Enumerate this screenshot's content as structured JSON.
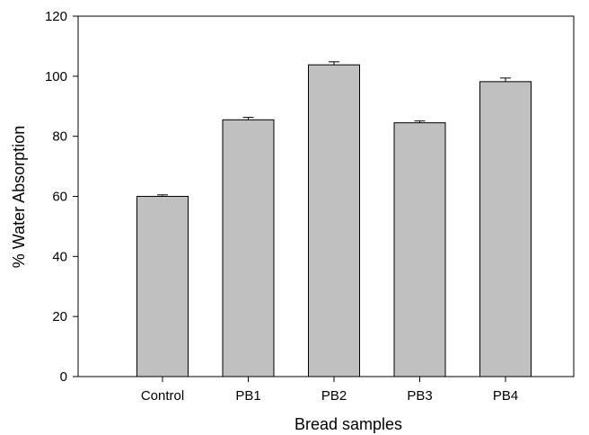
{
  "chart_data": {
    "type": "bar",
    "title": "",
    "xlabel": "Bread samples",
    "ylabel": "% Water Absorption",
    "categories": [
      "Control",
      "PB1",
      "PB2",
      "PB3",
      "PB4"
    ],
    "values": [
      60,
      85.5,
      103.8,
      84.5,
      98.2
    ],
    "errors": [
      0.5,
      0.8,
      1.0,
      0.6,
      1.2
    ],
    "ylim": [
      0,
      120
    ],
    "yticks": [
      "0",
      "20",
      "40",
      "60",
      "80",
      "100",
      "120"
    ],
    "grid": false,
    "legend": "none",
    "bar_color": "#c0c0c0",
    "bar_edge_color": "#000000"
  }
}
